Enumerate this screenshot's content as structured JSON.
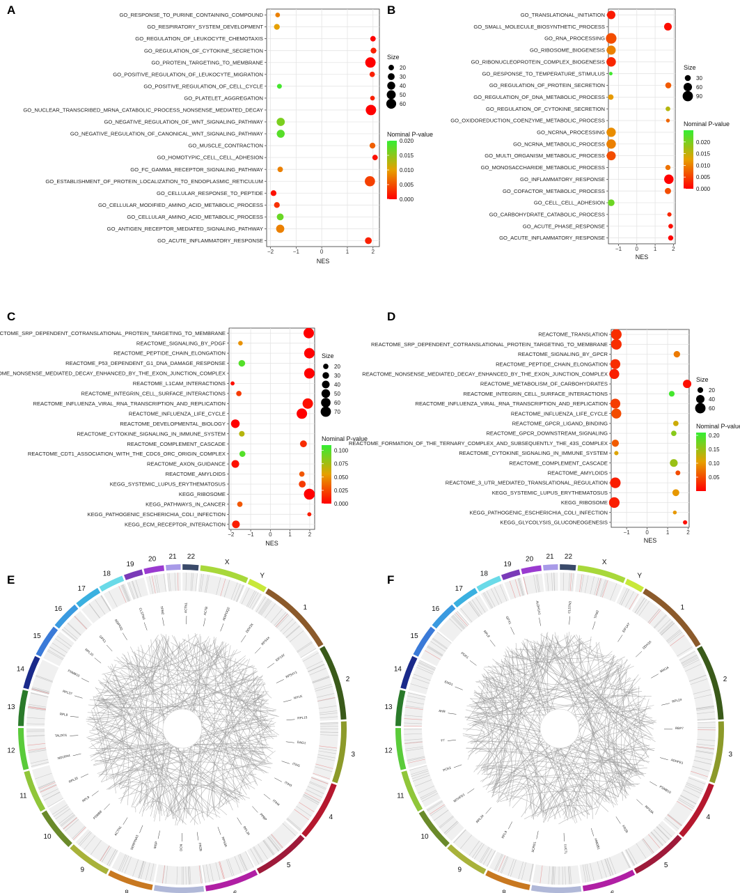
{
  "panels": [
    "A",
    "B",
    "C",
    "D",
    "E",
    "F"
  ],
  "legend": {
    "size_title": "Size",
    "pvalue_title": "Nominal P-value",
    "low_color": "#ff0000",
    "high_color": "#33ee33"
  },
  "chart_data": [
    {
      "panel": "A",
      "type": "scatter",
      "xlabel": "NES",
      "xlim": [
        -2.15,
        2.25
      ],
      "xticks": [
        -2,
        -1,
        0,
        1,
        2
      ],
      "xtick_labels": [
        "−2",
        "−1",
        "0",
        "1",
        "2"
      ],
      "size_breaks": [
        20,
        30,
        40,
        50,
        60
      ],
      "size_range": [
        5,
        72
      ],
      "pvalue_range": [
        0,
        0.02
      ],
      "pvalue_breaks": [
        0,
        0.005,
        0.01,
        0.015,
        0.02
      ],
      "pvalue_labels": [
        "0.000",
        "0.005",
        "0.010",
        "0.015",
        "0.020"
      ],
      "terms": [
        {
          "name": "GO_RESPONSE_TO_PURINE_CONTAINING_COMPOUND",
          "nes": -1.72,
          "size": 15,
          "p": 0.008
        },
        {
          "name": "GO_RESPIRATORY_SYSTEM_DEVELOPMENT",
          "nes": -1.75,
          "size": 22,
          "p": 0.01
        },
        {
          "name": "GO_REGULATION_OF_LEUKOCYTE_CHEMOTAXIS",
          "nes": 2.0,
          "size": 20,
          "p": 0.0
        },
        {
          "name": "GO_REGULATION_OF_CYTOKINE_SECRETION",
          "nes": 2.02,
          "size": 22,
          "p": 0.002
        },
        {
          "name": "GO_PROTEIN_TARGETING_TO_MEMBRANE",
          "nes": 1.9,
          "size": 66,
          "p": 0.0
        },
        {
          "name": "GO_POSITIVE_REGULATION_OF_LEUKOCYTE_MIGRATION",
          "nes": 1.97,
          "size": 19,
          "p": 0.002
        },
        {
          "name": "GO_POSITIVE_REGULATION_OF_CELL_CYCLE",
          "nes": -1.65,
          "size": 16,
          "p": 0.019
        },
        {
          "name": "GO_PLATELET_AGGREGATION",
          "nes": 1.98,
          "size": 15,
          "p": 0.002
        },
        {
          "name": "GO_NUCLEAR_TRANSCRIBED_MRNA_CATABOLIC_PROCESS_NONSENSE_MEDIATED_DECAY",
          "nes": 1.92,
          "size": 66,
          "p": 0.0
        },
        {
          "name": "GO_NEGATIVE_REGULATION_OF_WNT_SIGNALING_PATHWAY",
          "nes": -1.6,
          "size": 42,
          "p": 0.016
        },
        {
          "name": "GO_NEGATIVE_REGULATION_OF_CANONICAL_WNT_SIGNALING_PATHWAY",
          "nes": -1.6,
          "size": 40,
          "p": 0.018
        },
        {
          "name": "GO_MUSCLE_CONTRACTION",
          "nes": 1.98,
          "size": 22,
          "p": 0.006
        },
        {
          "name": "GO_HOMOTYPIC_CELL_CELL_ADHESION",
          "nes": 2.08,
          "size": 20,
          "p": 0.001
        },
        {
          "name": "GO_FC_GAMMA_RECEPTOR_SIGNALING_PATHWAY",
          "nes": -1.62,
          "size": 20,
          "p": 0.008
        },
        {
          "name": "GO_ESTABLISHMENT_OF_PROTEIN_LOCALIZATION_TO_ENDOPLASMIC_RETICULUM",
          "nes": 1.88,
          "size": 64,
          "p": 0.004
        },
        {
          "name": "GO_CELLULAR_RESPONSE_TO_PEPTIDE",
          "nes": -1.88,
          "size": 22,
          "p": 0.001
        },
        {
          "name": "GO_CELLULAR_MODIFIED_AMINO_ACID_METABOLIC_PROCESS",
          "nes": -1.75,
          "size": 22,
          "p": 0.003
        },
        {
          "name": "GO_CELLULAR_AMINO_ACID_METABOLIC_PROCESS",
          "nes": -1.62,
          "size": 30,
          "p": 0.017
        },
        {
          "name": "GO_ANTIGEN_RECEPTOR_MEDIATED_SIGNALING_PATHWAY",
          "nes": -1.62,
          "size": 42,
          "p": 0.008
        },
        {
          "name": "GO_ACUTE_INFLAMMATORY_RESPONSE",
          "nes": 1.82,
          "size": 30,
          "p": 0.002
        }
      ]
    },
    {
      "panel": "B",
      "type": "scatter",
      "xlabel": "NES",
      "xlim": [
        -1.55,
        2.1
      ],
      "xticks": [
        -1,
        0,
        1,
        2
      ],
      "xtick_labels": [
        "−1",
        "0",
        "1",
        "2"
      ],
      "size_breaks": [
        30,
        60,
        90
      ],
      "size_range": [
        5,
        100
      ],
      "pvalue_range": [
        0,
        0.025
      ],
      "pvalue_breaks": [
        0,
        0.005,
        0.01,
        0.015,
        0.02
      ],
      "pvalue_labels": [
        "0.000",
        "0.005",
        "0.010",
        "0.015",
        "0.020"
      ],
      "terms": [
        {
          "name": "GO_TRANSLATIONAL_INITIATION",
          "nes": -1.4,
          "size": 60,
          "p": 0.002
        },
        {
          "name": "GO_SMALL_MOLECULE_BIOSYNTHETIC_PROCESS",
          "nes": 1.7,
          "size": 50,
          "p": 0.001
        },
        {
          "name": "GO_RNA_PROCESSING",
          "nes": -1.4,
          "size": 95,
          "p": 0.006
        },
        {
          "name": "GO_RIBOSOME_BIOGENESIS",
          "nes": -1.4,
          "size": 70,
          "p": 0.01
        },
        {
          "name": "GO_RIBONUCLEOPROTEIN_COMPLEX_BIOGENESIS",
          "nes": -1.4,
          "size": 75,
          "p": 0.003
        },
        {
          "name": "GO_RESPONSE_TO_TEMPERATURE_STIMULUS",
          "nes": -1.42,
          "size": 10,
          "p": 0.024
        },
        {
          "name": "GO_REGULATION_OF_PROTEIN_SECRETION",
          "nes": 1.72,
          "size": 30,
          "p": 0.007
        },
        {
          "name": "GO_REGULATION_OF_DNA_METABOLIC_PROCESS",
          "nes": -1.42,
          "size": 25,
          "p": 0.012
        },
        {
          "name": "GO_REGULATION_OF_CYTOKINE_SECRETION",
          "nes": 1.7,
          "size": 18,
          "p": 0.016
        },
        {
          "name": "GO_OXIDOREDUCTION_COENZYME_METABOLIC_PROCESS",
          "nes": 1.7,
          "size": 12,
          "p": 0.008
        },
        {
          "name": "GO_NCRNA_PROCESSING",
          "nes": -1.4,
          "size": 72,
          "p": 0.011
        },
        {
          "name": "GO_NCRNA_METABOLIC_PROCESS",
          "nes": -1.4,
          "size": 75,
          "p": 0.01
        },
        {
          "name": "GO_MULTI_ORGANISM_METABOLIC_PROCESS",
          "nes": -1.4,
          "size": 70,
          "p": 0.006
        },
        {
          "name": "GO_MONOSACCHARIDE_METABOLIC_PROCESS",
          "nes": 1.7,
          "size": 22,
          "p": 0.009
        },
        {
          "name": "GO_INFLAMMATORY_RESPONSE",
          "nes": 1.75,
          "size": 75,
          "p": 0.0
        },
        {
          "name": "GO_COFACTOR_METABOLIC_PROCESS",
          "nes": 1.7,
          "size": 32,
          "p": 0.006
        },
        {
          "name": "GO_CELL_CELL_ADHESION",
          "nes": -1.4,
          "size": 38,
          "p": 0.021
        },
        {
          "name": "GO_CARBOHYDRATE_CATABOLIC_PROCESS",
          "nes": 1.78,
          "size": 15,
          "p": 0.003
        },
        {
          "name": "GO_ACUTE_PHASE_RESPONSE",
          "nes": 1.85,
          "size": 18,
          "p": 0.001
        },
        {
          "name": "GO_ACUTE_INFLAMMATORY_RESPONSE",
          "nes": 1.85,
          "size": 22,
          "p": 0.0
        }
      ]
    },
    {
      "panel": "C",
      "type": "scatter",
      "xlabel": "NES",
      "xlim": [
        -2.1,
        2.25
      ],
      "xticks": [
        -2,
        -1,
        0,
        1,
        2
      ],
      "xtick_labels": [
        "−2",
        "−1",
        "0",
        "1",
        "2"
      ],
      "size_breaks": [
        20,
        30,
        40,
        50,
        60,
        70
      ],
      "size_range": [
        5,
        78
      ],
      "pvalue_range": [
        0,
        0.11
      ],
      "pvalue_breaks": [
        0,
        0.025,
        0.05,
        0.075,
        0.1
      ],
      "pvalue_labels": [
        "0.000",
        "0.025",
        "0.050",
        "0.075",
        "0.100"
      ],
      "terms": [
        {
          "name": "REACTOME_SRP_DEPENDENT_COTRANSLATIONAL_PROTEIN_TARGETING_TO_MEMBRANE",
          "nes": 1.95,
          "size": 72,
          "p": 0.0
        },
        {
          "name": "REACTOME_SIGNALING_BY_PDGF",
          "nes": -1.52,
          "size": 15,
          "p": 0.05
        },
        {
          "name": "REACTOME_PEPTIDE_CHAIN_ELONGATION",
          "nes": 1.98,
          "size": 72,
          "p": 0.0
        },
        {
          "name": "REACTOME_P53_DEPENDENT_G1_DNA_DAMAGE_RESPONSE",
          "nes": -1.45,
          "size": 30,
          "p": 0.1
        },
        {
          "name": "REACTOME_NONSENSE_MEDIATED_DECAY_ENHANCED_BY_THE_EXON_JUNCTION_COMPLEX",
          "nes": 1.98,
          "size": 72,
          "p": 0.0
        },
        {
          "name": "REACTOME_L1CAM_INTERACTIONS",
          "nes": -1.92,
          "size": 12,
          "p": 0.005
        },
        {
          "name": "REACTOME_INTEGRIN_CELL_SURFACE_INTERACTIONS",
          "nes": -1.6,
          "size": 20,
          "p": 0.02
        },
        {
          "name": "REACTOME_INFLUENZA_VIRAL_RNA_TRANSCRIPTION_AND_REPLICATION",
          "nes": 1.9,
          "size": 72,
          "p": 0.005
        },
        {
          "name": "REACTOME_INFLUENZA_LIFE_CYCLE",
          "nes": 1.6,
          "size": 72,
          "p": 0.0
        },
        {
          "name": "REACTOME_DEVELOPMENTAL_BIOLOGY",
          "nes": -1.78,
          "size": 50,
          "p": 0.0
        },
        {
          "name": "REACTOME_CYTOKINE_SIGNALING_IN_IMMUNE_SYSTEM",
          "nes": -1.45,
          "size": 22,
          "p": 0.07
        },
        {
          "name": "REACTOME_COMPLEMENT_CASCADE",
          "nes": 1.68,
          "size": 32,
          "p": 0.015
        },
        {
          "name": "REACTOME_CDT1_ASSOCIATION_WITH_THE_CDC6_ORC_ORIGIN_COMPLEX",
          "nes": -1.42,
          "size": 25,
          "p": 0.1
        },
        {
          "name": "REACTOME_AXON_GUIDANCE",
          "nes": -1.78,
          "size": 40,
          "p": 0.005
        },
        {
          "name": "REACTOME_AMYLOIDS",
          "nes": 1.6,
          "size": 20,
          "p": 0.03
        },
        {
          "name": "KEGG_SYSTEMIC_LUPUS_ERYTHEMATOSUS",
          "nes": 1.62,
          "size": 32,
          "p": 0.02
        },
        {
          "name": "KEGG_RIBOSOME",
          "nes": 1.98,
          "size": 78,
          "p": 0.0
        },
        {
          "name": "KEGG_PATHWAYS_IN_CANCER",
          "nes": -1.55,
          "size": 20,
          "p": 0.03
        },
        {
          "name": "KEGG_PATHOGENIC_ESCHERICHIA_COLI_INFECTION",
          "nes": 1.98,
          "size": 12,
          "p": 0.01
        },
        {
          "name": "KEGG_ECM_RECEPTOR_INTERACTION",
          "nes": -1.75,
          "size": 40,
          "p": 0.01
        }
      ]
    },
    {
      "panel": "D",
      "type": "scatter",
      "xlabel": "NES",
      "xlim": [
        -1.75,
        2.05
      ],
      "xticks": [
        -1,
        0,
        1,
        2
      ],
      "xtick_labels": [
        "−1",
        "0",
        "1",
        "2"
      ],
      "size_breaks": [
        20,
        40,
        60
      ],
      "size_range": [
        5,
        65
      ],
      "pvalue_range": [
        0,
        0.21
      ],
      "pvalue_breaks": [
        0.05,
        0.1,
        0.15,
        0.2
      ],
      "pvalue_labels": [
        "0.05",
        "0.10",
        "0.15",
        "0.20"
      ],
      "terms": [
        {
          "name": "REACTOME_TRANSLATION",
          "nes": -1.5,
          "size": 62,
          "p": 0.03
        },
        {
          "name": "REACTOME_SRP_DEPENDENT_COTRANSLATIONAL_PROTEIN_TARGETING_TO_MEMBRANE",
          "nes": -1.5,
          "size": 62,
          "p": 0.03
        },
        {
          "name": "REACTOME_SIGNALING_BY_GPCR",
          "nes": 1.45,
          "size": 25,
          "p": 0.08
        },
        {
          "name": "REACTOME_PEPTIDE_CHAIN_ELONGATION",
          "nes": -1.55,
          "size": 55,
          "p": 0.03
        },
        {
          "name": "REACTOME_NONSENSE_MEDIATED_DECAY_ENHANCED_BY_THE_EXON_JUNCTION_COMPLEX",
          "nes": -1.6,
          "size": 55,
          "p": 0.02
        },
        {
          "name": "REACTOME_METABOLISM_OF_CARBOHYDRATES",
          "nes": 1.95,
          "size": 40,
          "p": 0.01
        },
        {
          "name": "REACTOME_INTEGRIN_CELL_SURFACE_INTERACTIONS",
          "nes": 1.2,
          "size": 20,
          "p": 0.2
        },
        {
          "name": "REACTOME_INFLUENZA_VIRAL_RNA_TRANSCRIPTION_AND_REPLICATION",
          "nes": -1.55,
          "size": 55,
          "p": 0.04
        },
        {
          "name": "REACTOME_INFLUENZA_LIFE_CYCLE",
          "nes": -1.5,
          "size": 55,
          "p": 0.05
        },
        {
          "name": "REACTOME_GPCR_LIGAND_BINDING",
          "nes": 1.4,
          "size": 18,
          "p": 0.12
        },
        {
          "name": "REACTOME_GPCR_DOWNSTREAM_SIGNALING",
          "nes": 1.3,
          "size": 18,
          "p": 0.16
        },
        {
          "name": "REACTOME_FORMATION_OF_THE_TERNARY_COMPLEX_AND_SUBSEQUENTLY_THE_43S_COMPLEX",
          "nes": -1.55,
          "size": 30,
          "p": 0.06
        },
        {
          "name": "REACTOME_CYTOKINE_SIGNALING_IN_IMMUNE_SYSTEM",
          "nes": -1.5,
          "size": 12,
          "p": 0.11
        },
        {
          "name": "REACTOME_COMPLEMENT_CASCADE",
          "nes": 1.3,
          "size": 35,
          "p": 0.15
        },
        {
          "name": "REACTOME_AMYLOIDS",
          "nes": 1.5,
          "size": 15,
          "p": 0.05
        },
        {
          "name": "REACTOME_3_UTR_MEDIATED_TRANSLATIONAL_REGULATION",
          "nes": -1.55,
          "size": 62,
          "p": 0.02
        },
        {
          "name": "KEGG_SYSTEMIC_LUPUS_ERYTHEMATOSUS",
          "nes": 1.4,
          "size": 28,
          "p": 0.1
        },
        {
          "name": "KEGG_RIBOSOME",
          "nes": -1.6,
          "size": 62,
          "p": 0.02
        },
        {
          "name": "KEGG_PATHOGENIC_ESCHERICHIA_COLI_INFECTION",
          "nes": 1.35,
          "size": 10,
          "p": 0.1
        },
        {
          "name": "KEGG_GLYCOLYSIS_GLUCONEOGENESIS",
          "nes": 1.85,
          "size": 12,
          "p": 0.01
        }
      ]
    }
  ],
  "circos": {
    "chromosomes": [
      {
        "name": "1",
        "color": "#8b5a2b"
      },
      {
        "name": "2",
        "color": "#3a5a1a"
      },
      {
        "name": "3",
        "color": "#8c9a2a"
      },
      {
        "name": "4",
        "color": "#b5182e"
      },
      {
        "name": "5",
        "color": "#9e1a3a"
      },
      {
        "name": "6",
        "color": "#b01fa4"
      },
      {
        "name": "7",
        "color": "#b0b8d8"
      },
      {
        "name": "8",
        "color": "#c87820"
      },
      {
        "name": "9",
        "color": "#a8b23a"
      },
      {
        "name": "10",
        "color": "#6a8a2a"
      },
      {
        "name": "11",
        "color": "#90c63a"
      },
      {
        "name": "12",
        "color": "#5acb3a"
      },
      {
        "name": "13",
        "color": "#2a7a2a"
      },
      {
        "name": "14",
        "color": "#1a2a8a"
      },
      {
        "name": "15",
        "color": "#3a7ad8"
      },
      {
        "name": "16",
        "color": "#3a9ae0"
      },
      {
        "name": "17",
        "color": "#3ab0e0"
      },
      {
        "name": "18",
        "color": "#6adae8"
      },
      {
        "name": "19",
        "color": "#7a3ab8"
      },
      {
        "name": "20",
        "color": "#9a3ad0"
      },
      {
        "name": "21",
        "color": "#a89ae8"
      },
      {
        "name": "22",
        "color": "#3a4a6a"
      },
      {
        "name": "X",
        "color": "#a8d83a"
      },
      {
        "name": "Y",
        "color": "#c8e83a"
      }
    ],
    "panel_E_genes": {
      "red": [
        "RPL8",
        "RPL37",
        "PSMB10",
        "RPL10",
        "GPX1",
        "ADIPOQ"
      ],
      "green": [
        "CLSTN3",
        "TPM2",
        "ACTN1",
        "ACTB",
        "ADIPOQ2"
      ],
      "black": [
        "DDX3X",
        "RPS4X",
        "EIF1AY",
        "RPS4Y1",
        "MYLK",
        "RPL15",
        "DAG1",
        "ITIH1",
        "ITIH3",
        "ITIH4",
        "PPBP",
        "RPL34",
        "RPS3A",
        "FRZB",
        "DCN",
        "MGP",
        "SERPINA3",
        "ACTN1",
        "PSMB8",
        "RPL9",
        "RPL35",
        "NDUFA4",
        "TALDO1"
      ]
    },
    "panel_F_genes": {
      "red": [
        "RPL8",
        "GPX1",
        "ALDH1A1"
      ],
      "green": [
        "CLSTN3",
        "TPM2"
      ],
      "black": [
        "EIF1AY",
        "DDX3X",
        "MAOA",
        "RPL24",
        "RBP7",
        "ADHFE1",
        "PSMB10",
        "RPS3A",
        "FRZB",
        "HMGB1",
        "LUC7L",
        "SCRG1",
        "RPL9",
        "RPL34",
        "MTHFD1",
        "PCK2",
        "F7",
        "AHR",
        "ENO1",
        "PGK1"
      ]
    }
  }
}
